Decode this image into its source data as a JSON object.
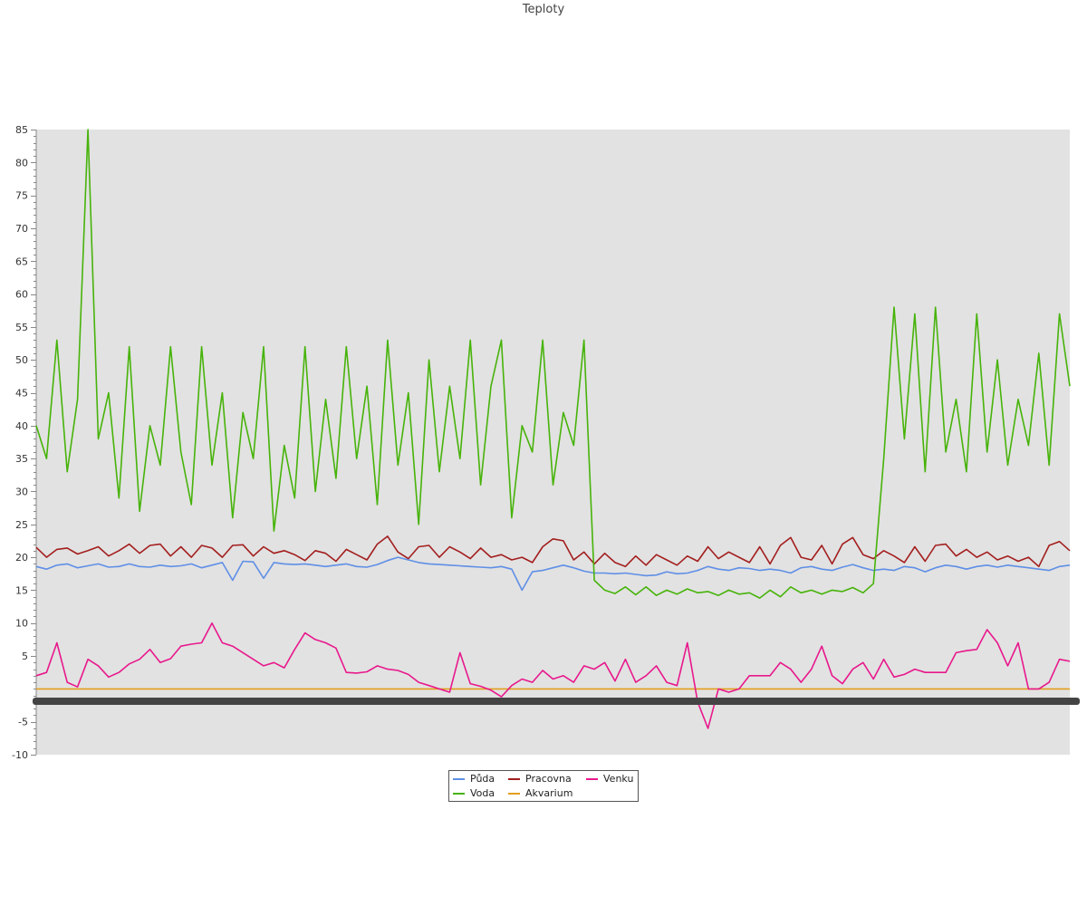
{
  "chart_data": {
    "type": "line",
    "title": "Teploty",
    "xlabel": "",
    "ylabel": "",
    "ylim": [
      -10,
      85
    ],
    "yticks": [
      85,
      80,
      75,
      70,
      65,
      60,
      55,
      50,
      45,
      40,
      35,
      30,
      25,
      20,
      15,
      10,
      5,
      -5,
      -10
    ],
    "grid": false,
    "legend_position": "bottom-center",
    "series": [
      {
        "name": "Půda",
        "color": "#5f8fe6",
        "x": [
          0,
          1,
          2,
          3,
          4,
          5,
          6,
          7,
          8,
          9,
          10,
          11,
          12,
          13,
          14,
          15,
          16,
          17,
          18,
          19,
          20,
          21,
          22,
          23,
          24,
          25,
          26,
          27,
          28,
          29,
          30,
          31,
          32,
          33,
          34,
          35,
          36,
          37,
          38,
          39,
          40,
          41,
          42,
          43,
          44,
          45,
          46,
          47,
          48,
          49,
          50,
          51,
          52,
          53,
          54,
          55,
          56,
          57,
          58,
          59,
          60,
          61,
          62,
          63,
          64,
          65,
          66,
          67,
          68,
          69,
          70,
          71,
          72,
          73,
          74,
          75,
          76,
          77,
          78,
          79,
          80,
          81,
          82,
          83,
          84,
          85,
          86,
          87,
          88,
          89,
          90,
          91,
          92,
          93,
          94,
          95,
          96,
          97,
          98,
          99,
          100
        ],
        "y": [
          18.6,
          18.2,
          18.8,
          19.0,
          18.4,
          18.7,
          19.0,
          18.5,
          18.6,
          19.0,
          18.6,
          18.5,
          18.8,
          18.6,
          18.7,
          19.0,
          18.4,
          18.8,
          19.2,
          16.5,
          19.4,
          19.3,
          16.8,
          19.2,
          19.0,
          18.9,
          19.0,
          18.8,
          18.6,
          18.8,
          19.0,
          18.6,
          18.5,
          18.9,
          19.5,
          20.0,
          19.6,
          19.2,
          19.0,
          18.9,
          18.8,
          18.7,
          18.6,
          18.5,
          18.4,
          18.6,
          18.2,
          15.0,
          17.8,
          18.0,
          18.4,
          18.8,
          18.4,
          17.9,
          17.6,
          17.6,
          17.5,
          17.6,
          17.4,
          17.2,
          17.3,
          17.8,
          17.5,
          17.6,
          18.0,
          18.6,
          18.2,
          18.0,
          18.4,
          18.3,
          18.0,
          18.2,
          18.0,
          17.6,
          18.4,
          18.6,
          18.2,
          18.0,
          18.5,
          18.9,
          18.4,
          18.0,
          18.2,
          18.0,
          18.6,
          18.4,
          17.8,
          18.4,
          18.8,
          18.6,
          18.2,
          18.6,
          18.8,
          18.5,
          18.8,
          18.6,
          18.4,
          18.2,
          18.0,
          18.6,
          18.8
        ]
      },
      {
        "name": "Pracovna",
        "color": "#a31e1e",
        "x": [
          0,
          1,
          2,
          3,
          4,
          5,
          6,
          7,
          8,
          9,
          10,
          11,
          12,
          13,
          14,
          15,
          16,
          17,
          18,
          19,
          20,
          21,
          22,
          23,
          24,
          25,
          26,
          27,
          28,
          29,
          30,
          31,
          32,
          33,
          34,
          35,
          36,
          37,
          38,
          39,
          40,
          41,
          42,
          43,
          44,
          45,
          46,
          47,
          48,
          49,
          50,
          51,
          52,
          53,
          54,
          55,
          56,
          57,
          58,
          59,
          60,
          61,
          62,
          63,
          64,
          65,
          66,
          67,
          68,
          69,
          70,
          71,
          72,
          73,
          74,
          75,
          76,
          77,
          78,
          79,
          80,
          81,
          82,
          83,
          84,
          85,
          86,
          87,
          88,
          89,
          90,
          91,
          92,
          93,
          94,
          95,
          96,
          97,
          98,
          99,
          100
        ],
        "y": [
          21.5,
          20.0,
          21.2,
          21.4,
          20.5,
          21.0,
          21.6,
          20.2,
          21.0,
          22.0,
          20.6,
          21.8,
          22.0,
          20.2,
          21.6,
          20.0,
          21.8,
          21.4,
          20.0,
          21.8,
          21.9,
          20.2,
          21.6,
          20.6,
          21.0,
          20.4,
          19.5,
          21.0,
          20.6,
          19.4,
          21.2,
          20.4,
          19.6,
          22.0,
          23.2,
          20.8,
          19.8,
          21.6,
          21.8,
          20.0,
          21.6,
          20.8,
          19.8,
          21.4,
          20.0,
          20.4,
          19.6,
          20.0,
          19.2,
          21.6,
          22.8,
          22.5,
          19.6,
          20.8,
          19.0,
          20.6,
          19.2,
          18.6,
          20.2,
          18.8,
          20.4,
          19.6,
          18.8,
          20.2,
          19.4,
          21.6,
          19.8,
          20.8,
          20.0,
          19.2,
          21.6,
          19.0,
          21.8,
          23.0,
          20.0,
          19.6,
          21.8,
          19.0,
          22.0,
          23.0,
          20.4,
          19.8,
          21.0,
          20.2,
          19.2,
          21.6,
          19.4,
          21.8,
          22.0,
          20.2,
          21.2,
          20.0,
          20.8,
          19.6,
          20.2,
          19.4,
          20.0,
          18.6,
          21.8,
          22.4,
          21.0
        ]
      },
      {
        "name": "Venku",
        "color": "#e8188c",
        "x": [
          0,
          1,
          2,
          3,
          4,
          5,
          6,
          7,
          8,
          9,
          10,
          11,
          12,
          13,
          14,
          15,
          16,
          17,
          18,
          19,
          20,
          21,
          22,
          23,
          24,
          25,
          26,
          27,
          28,
          29,
          30,
          31,
          32,
          33,
          34,
          35,
          36,
          37,
          38,
          39,
          40,
          41,
          42,
          43,
          44,
          45,
          46,
          47,
          48,
          49,
          50,
          51,
          52,
          53,
          54,
          55,
          56,
          57,
          58,
          59,
          60,
          61,
          62,
          63,
          64,
          65,
          66,
          67,
          68,
          69,
          70,
          71,
          72,
          73,
          74,
          75,
          76,
          77,
          78,
          79,
          80,
          81,
          82,
          83,
          84,
          85,
          86,
          87,
          88,
          89,
          90,
          91,
          92,
          93,
          94,
          95,
          96,
          97,
          98,
          99,
          100
        ],
        "y": [
          2.0,
          2.5,
          7.0,
          1.0,
          0.3,
          4.5,
          3.5,
          1.8,
          2.5,
          3.8,
          4.5,
          6.0,
          4.0,
          4.6,
          6.5,
          6.8,
          7.0,
          10.0,
          7.0,
          6.5,
          5.5,
          4.5,
          3.5,
          4.0,
          3.2,
          6.0,
          8.5,
          7.5,
          7.0,
          6.2,
          2.5,
          2.4,
          2.6,
          3.5,
          3.0,
          2.8,
          2.2,
          1.0,
          0.5,
          0.0,
          -0.5,
          5.5,
          0.8,
          0.4,
          -0.2,
          -1.2,
          0.5,
          1.5,
          1.0,
          2.8,
          1.5,
          2.0,
          1.0,
          3.5,
          3.0,
          4.0,
          1.2,
          4.5,
          1.0,
          2.0,
          3.5,
          1.0,
          0.5,
          7.0,
          -2.0,
          -6.0,
          0.0,
          -0.5,
          0.0,
          2.0,
          2.0,
          2.0,
          4.0,
          3.0,
          1.0,
          3.0,
          6.5,
          2.0,
          0.8,
          3.0,
          4.0,
          1.5,
          4.5,
          1.8,
          2.2,
          3.0,
          2.5,
          2.5,
          2.5,
          5.5,
          5.8,
          6.0,
          9.0,
          7.0,
          3.5,
          7.0,
          0.0,
          0.0,
          1.0,
          4.5,
          4.2
        ]
      },
      {
        "name": "Voda",
        "color": "#47b30a",
        "x": [
          0,
          1,
          2,
          3,
          4,
          5,
          6,
          7,
          8,
          9,
          10,
          11,
          12,
          13,
          14,
          15,
          16,
          17,
          18,
          19,
          20,
          21,
          22,
          23,
          24,
          25,
          26,
          27,
          28,
          29,
          30,
          31,
          32,
          33,
          34,
          35,
          36,
          37,
          38,
          39,
          40,
          41,
          42,
          43,
          44,
          45,
          46,
          47,
          48,
          49,
          50,
          51,
          52,
          53,
          54,
          55,
          56,
          57,
          58,
          59,
          60,
          61,
          62,
          63,
          64,
          65,
          66,
          67,
          68,
          69,
          70,
          71,
          72,
          73,
          74,
          75,
          76,
          77,
          78,
          79,
          80,
          81,
          82,
          83,
          84,
          85,
          86,
          87,
          88,
          89,
          90,
          91,
          92,
          93,
          94,
          95,
          96,
          97,
          98,
          99,
          100
        ],
        "y": [
          40.0,
          35.0,
          53.0,
          33.0,
          44.0,
          85.0,
          38.0,
          45.0,
          29.0,
          52.0,
          27.0,
          40.0,
          34.0,
          52.0,
          36.0,
          28.0,
          52.0,
          34.0,
          45.0,
          26.0,
          42.0,
          35.0,
          52.0,
          24.0,
          37.0,
          29.0,
          52.0,
          30.0,
          44.0,
          32.0,
          52.0,
          35.0,
          46.0,
          28.0,
          53.0,
          34.0,
          45.0,
          25.0,
          50.0,
          33.0,
          46.0,
          35.0,
          53.0,
          31.0,
          46.0,
          53.0,
          26.0,
          40.0,
          36.0,
          53.0,
          31.0,
          42.0,
          37.0,
          53.0,
          16.5,
          15.0,
          14.5,
          15.5,
          14.3,
          15.5,
          14.2,
          15.0,
          14.4,
          15.2,
          14.6,
          14.8,
          14.2,
          15.0,
          14.4,
          14.6,
          13.8,
          15.0,
          14.0,
          15.5,
          14.6,
          15.0,
          14.4,
          15.0,
          14.8,
          15.4,
          14.6,
          16.0,
          35.0,
          58.0,
          38.0,
          57.0,
          33.0,
          58.0,
          36.0,
          44.0,
          33.0,
          57.0,
          36.0,
          50.0,
          34.0,
          44.0,
          37.0,
          51.0,
          34.0,
          57.0,
          46.0
        ]
      },
      {
        "name": "Akvarium",
        "color": "#e39e1c",
        "x": [
          0,
          100
        ],
        "y": [
          0,
          0
        ]
      }
    ]
  }
}
